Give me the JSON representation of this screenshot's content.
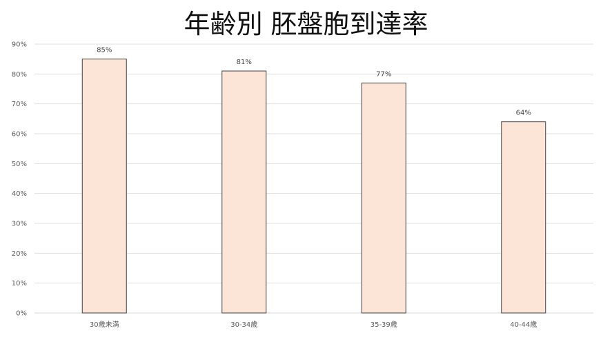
{
  "chart_data": {
    "type": "bar",
    "title": "年齢別 胚盤胞到達率",
    "xlabel": "",
    "ylabel": "",
    "categories": [
      "30歳未満",
      "30-34歳",
      "35-39歳",
      "40-44歳"
    ],
    "values": [
      85,
      81,
      77,
      64
    ],
    "data_labels": [
      "85%",
      "81%",
      "77%",
      "64%"
    ],
    "ylim": [
      0,
      90
    ],
    "yticks": [
      "0%",
      "10%",
      "20%",
      "30%",
      "40%",
      "50%",
      "60%",
      "70%",
      "80%",
      "90%"
    ],
    "grid": true,
    "legend": "none",
    "colors": {
      "bar_fill": "#FCE4D6",
      "bar_border": "#404040",
      "grid": "#E0E0E0"
    }
  }
}
